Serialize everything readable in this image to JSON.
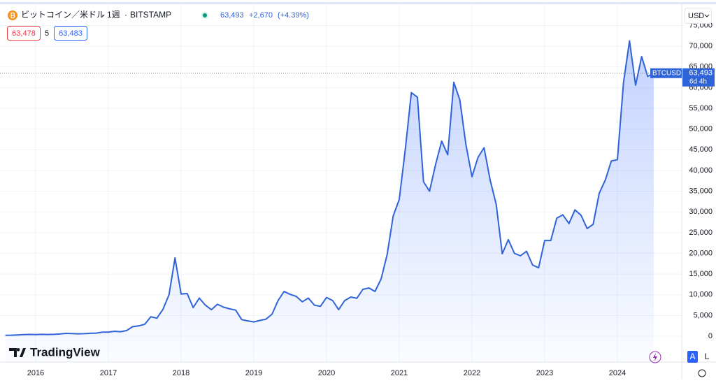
{
  "header": {
    "symbol": "ビットコイン／米ドル",
    "interval": "1週",
    "exchange": "BITSTAMP",
    "last": "63,493",
    "change": "+2,670",
    "change_percent": "(+4.39%)",
    "bid": "63,478",
    "spread": "5",
    "ask": "63,483"
  },
  "currency": "USD",
  "price_tag": {
    "symbol": "BTCUSD",
    "price": "63,493",
    "countdown": "6d 4h"
  },
  "logo": "TradingView",
  "controls": {
    "auto": "A",
    "log": "L"
  },
  "chart_data": {
    "type": "area",
    "color": "#2f63d8",
    "grid": true,
    "categories": [
      null,
      null,
      null,
      null,
      null,
      "2016",
      null,
      null,
      null,
      null,
      null,
      null,
      null,
      null,
      null,
      null,
      null,
      "2017",
      null,
      null,
      null,
      null,
      null,
      null,
      null,
      null,
      null,
      null,
      null,
      "2018",
      null,
      null,
      null,
      null,
      null,
      null,
      null,
      null,
      null,
      null,
      null,
      "2019",
      null,
      null,
      null,
      null,
      null,
      null,
      null,
      null,
      null,
      null,
      null,
      "2020",
      null,
      null,
      null,
      null,
      null,
      null,
      null,
      null,
      null,
      null,
      null,
      "2021",
      null,
      null,
      null,
      null,
      null,
      null,
      null,
      null,
      null,
      null,
      null,
      "2022",
      null,
      null,
      null,
      null,
      null,
      null,
      null,
      null,
      null,
      null,
      null,
      "2023",
      null,
      null,
      null,
      null,
      null,
      null,
      null,
      null,
      null,
      null,
      null,
      "2024",
      null,
      null,
      null,
      null,
      null,
      null
    ],
    "values": [
      230,
      236,
      310,
      377,
      430,
      370,
      437,
      416,
      448,
      530,
      670,
      624,
      575,
      608,
      700,
      740,
      960,
      970,
      1190,
      1080,
      1350,
      2300,
      2480,
      2870,
      4700,
      4340,
      6450,
      10000,
      18900,
      10200,
      10300,
      6900,
      9200,
      7500,
      6400,
      7700,
      7000,
      6600,
      6300,
      4000,
      3700,
      3450,
      3800,
      4100,
      5300,
      8600,
      10800,
      10100,
      9600,
      8300,
      9200,
      7500,
      7200,
      9350,
      8600,
      6400,
      8600,
      9450,
      9150,
      11300,
      11650,
      10800,
      13800,
      19700,
      29000,
      33000,
      45200,
      58800,
      57700,
      37300,
      35000,
      41500,
      47100,
      43800,
      61300,
      57000,
      46300,
      38500,
      43200,
      45500,
      37700,
      31800,
      19900,
      23300,
      20000,
      19400,
      20500,
      17200,
      16500,
      23100,
      23100,
      28500,
      29300,
      27200,
      30500,
      29200,
      26000,
      27000,
      34500,
      37700,
      42300,
      42600,
      61200,
      71300,
      60600,
      67500,
      62700,
      63493
    ],
    "ylim": [
      -6240,
      76100
    ],
    "yticks": [
      0,
      {
        "value": 5000,
        "label": "5,000"
      },
      {
        "value": 10000,
        "label": "10,000"
      },
      {
        "value": 15000,
        "label": "15,000"
      },
      {
        "value": 20000,
        "label": "20,000"
      },
      {
        "value": 25000,
        "label": "25,000"
      },
      {
        "value": 30000,
        "label": "30,000"
      },
      {
        "value": 35000,
        "label": "35,000"
      },
      {
        "value": 40000,
        "label": "40,000"
      },
      {
        "value": 45000,
        "label": "45,000"
      },
      {
        "value": 50000,
        "label": "50,000"
      },
      {
        "value": 55000,
        "label": "55,000"
      },
      {
        "value": 60000,
        "label": "60,000"
      },
      {
        "value": 65000,
        "label": "65,000"
      },
      {
        "value": 70000,
        "label": "70,000"
      },
      {
        "value": 75000,
        "label": "75,000"
      }
    ]
  }
}
